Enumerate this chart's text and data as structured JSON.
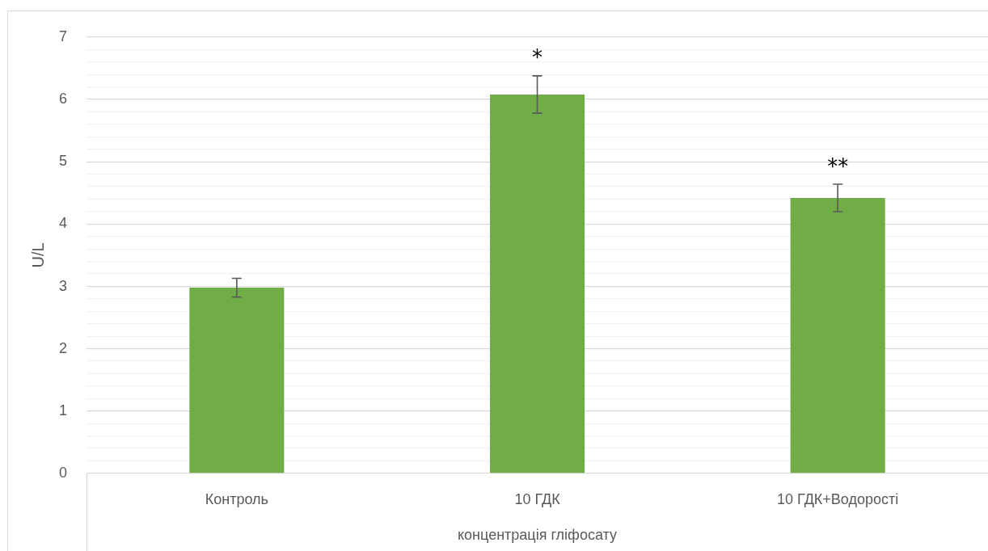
{
  "chart_data": {
    "type": "bar",
    "categories": [
      "Контроль",
      "10 ГДК",
      "10 ГДК+Водорості"
    ],
    "values": [
      2.98,
      6.08,
      4.42
    ],
    "errors": [
      0.15,
      0.3,
      0.22
    ],
    "color": "#70ad47",
    "xlabel": "концентрація гліфосату",
    "ylabel": "U/L",
    "ylim": [
      0,
      7
    ],
    "yticks": [
      0,
      {
        "value": 0.2,
        "label": null
      },
      {
        "value": 0.4,
        "label": null
      },
      {
        "value": 0.6,
        "label": null
      },
      {
        "value": 0.8,
        "label": null
      },
      1,
      {
        "value": 1.2,
        "label": null
      },
      {
        "value": 1.4,
        "label": null
      },
      {
        "value": 1.6,
        "label": null
      },
      {
        "value": 1.8,
        "label": null
      },
      2,
      {
        "value": 2.2,
        "label": null
      },
      {
        "value": 2.4,
        "label": null
      },
      {
        "value": 2.6,
        "label": null
      },
      {
        "value": 2.8,
        "label": null
      },
      3,
      {
        "value": 3.2,
        "label": null
      },
      {
        "value": 3.4,
        "label": null
      },
      {
        "value": 3.6,
        "label": null
      },
      {
        "value": 3.8,
        "label": null
      },
      4,
      {
        "value": 4.2,
        "label": null
      },
      {
        "value": 4.4,
        "label": null
      },
      {
        "value": 4.6,
        "label": null
      },
      {
        "value": 4.8,
        "label": null
      },
      5,
      {
        "value": 5.2,
        "label": null
      },
      {
        "value": 5.4,
        "label": null
      },
      {
        "value": 5.6,
        "label": null
      },
      {
        "value": 5.8,
        "label": null
      },
      6,
      {
        "value": 6.2,
        "label": null
      },
      {
        "value": 6.4,
        "label": null
      },
      {
        "value": 6.6,
        "label": null
      },
      {
        "value": 6.8,
        "label": null
      },
      7
    ],
    "grid": "y",
    "legend": false,
    "annotations": [
      "*",
      "**"
    ]
  }
}
